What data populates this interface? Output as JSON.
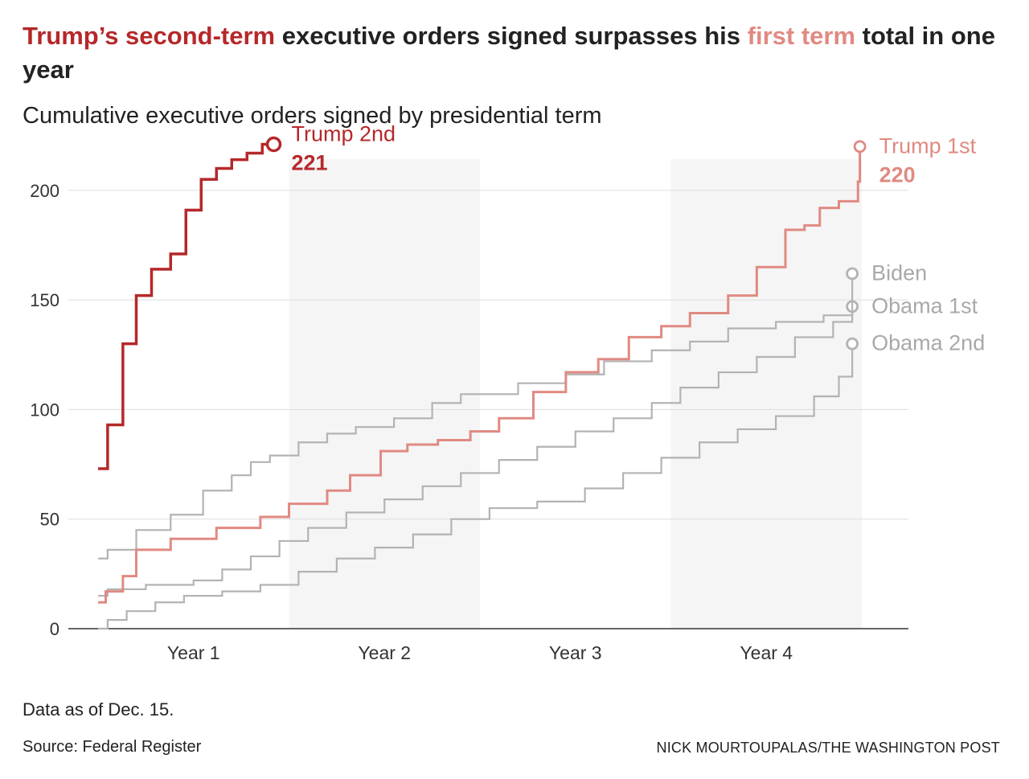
{
  "headline": {
    "part1": "Trump’s second-term",
    "part2": " executive orders signed surpasses his ",
    "part3": "first term",
    "part4": " total in one year"
  },
  "subtitle": "Cumulative executive orders signed by presidential term",
  "footer": {
    "note": "Data as of Dec. 15.",
    "source": "Source: Federal Register",
    "credit": "NICK MOURTOUPALAS/THE WASHINGTON POST"
  },
  "colors": {
    "trump2": "#b5282a",
    "trump1": "#e08a82",
    "gray": "#b3b3b3",
    "band": "#f5f5f5",
    "grid": "#dddddd",
    "axis": "#333333"
  },
  "chart_data": {
    "type": "line",
    "step": true,
    "title": "Cumulative executive orders signed by presidential term",
    "xlabel": "",
    "ylabel": "",
    "xlim": [
      0,
      4
    ],
    "ylim": [
      0,
      230
    ],
    "yticks": [
      0,
      50,
      100,
      150,
      200
    ],
    "xticks": [
      {
        "label": "Year 1",
        "value": 0.5
      },
      {
        "label": "Year 2",
        "value": 1.5
      },
      {
        "label": "Year 3",
        "value": 2.5
      },
      {
        "label": "Year 4",
        "value": 3.5
      }
    ],
    "shaded_years": [
      [
        1,
        2
      ],
      [
        3,
        4
      ]
    ],
    "series": [
      {
        "name": "Trump 2nd",
        "key": "trump2",
        "label": "Trump 2nd",
        "value_label": "221",
        "x": [
          0,
          0.05,
          0.13,
          0.2,
          0.28,
          0.38,
          0.46,
          0.54,
          0.62,
          0.7,
          0.78,
          0.86,
          0.92
        ],
        "y": [
          73,
          93,
          130,
          152,
          164,
          171,
          191,
          205,
          210,
          214,
          217,
          221,
          221
        ]
      },
      {
        "name": "Trump 1st",
        "key": "trump1",
        "label": "Trump 1st",
        "value_label": "220",
        "x": [
          0,
          0.04,
          0.13,
          0.2,
          0.38,
          0.62,
          0.85,
          1.0,
          1.2,
          1.32,
          1.48,
          1.62,
          1.78,
          1.95,
          2.1,
          2.28,
          2.45,
          2.62,
          2.78,
          2.95,
          3.1,
          3.3,
          3.45,
          3.6,
          3.7,
          3.78,
          3.88,
          3.98,
          3.99
        ],
        "y": [
          12,
          17,
          24,
          36,
          41,
          46,
          51,
          57,
          63,
          70,
          81,
          84,
          86,
          90,
          96,
          108,
          117,
          123,
          133,
          138,
          144,
          152,
          165,
          182,
          184,
          192,
          195,
          204,
          220
        ]
      },
      {
        "name": "Biden",
        "key": "biden",
        "label": "Biden",
        "x": [
          0,
          0.05,
          0.2,
          0.38,
          0.55,
          0.7,
          0.8,
          0.9,
          1.05,
          1.2,
          1.35,
          1.55,
          1.75,
          1.9,
          2.2,
          2.45,
          2.65,
          2.9,
          3.1,
          3.3,
          3.55,
          3.8,
          3.95
        ],
        "y": [
          32,
          36,
          45,
          52,
          63,
          70,
          76,
          79,
          85,
          89,
          92,
          96,
          103,
          107,
          112,
          116,
          122,
          127,
          131,
          137,
          140,
          143,
          162
        ]
      },
      {
        "name": "Obama 1st",
        "key": "obama1",
        "label": "Obama 1st",
        "x": [
          0,
          0.05,
          0.25,
          0.5,
          0.65,
          0.8,
          0.95,
          1.1,
          1.3,
          1.5,
          1.7,
          1.9,
          2.1,
          2.3,
          2.5,
          2.7,
          2.9,
          3.05,
          3.25,
          3.45,
          3.65,
          3.85,
          3.95
        ],
        "y": [
          15,
          18,
          20,
          22,
          27,
          33,
          40,
          46,
          53,
          59,
          65,
          71,
          77,
          83,
          90,
          96,
          103,
          110,
          117,
          124,
          133,
          140,
          147
        ]
      },
      {
        "name": "Obama 2nd",
        "key": "obama2",
        "label": "Obama 2nd",
        "x": [
          0,
          0.05,
          0.15,
          0.3,
          0.45,
          0.65,
          0.85,
          1.05,
          1.25,
          1.45,
          1.65,
          1.85,
          2.05,
          2.3,
          2.55,
          2.75,
          2.95,
          3.15,
          3.35,
          3.55,
          3.75,
          3.88,
          3.95
        ],
        "y": [
          0,
          4,
          8,
          12,
          15,
          17,
          20,
          26,
          32,
          37,
          43,
          50,
          55,
          58,
          64,
          71,
          78,
          85,
          91,
          97,
          106,
          115,
          130
        ]
      }
    ],
    "end_labels": [
      {
        "key": "trump2",
        "name": "Trump 2nd",
        "value": "221"
      },
      {
        "key": "trump1",
        "name": "Trump 1st",
        "value": "220"
      },
      {
        "key": "biden",
        "name": "Biden"
      },
      {
        "key": "obama1",
        "name": "Obama 1st"
      },
      {
        "key": "obama2",
        "name": "Obama 2nd"
      }
    ]
  }
}
